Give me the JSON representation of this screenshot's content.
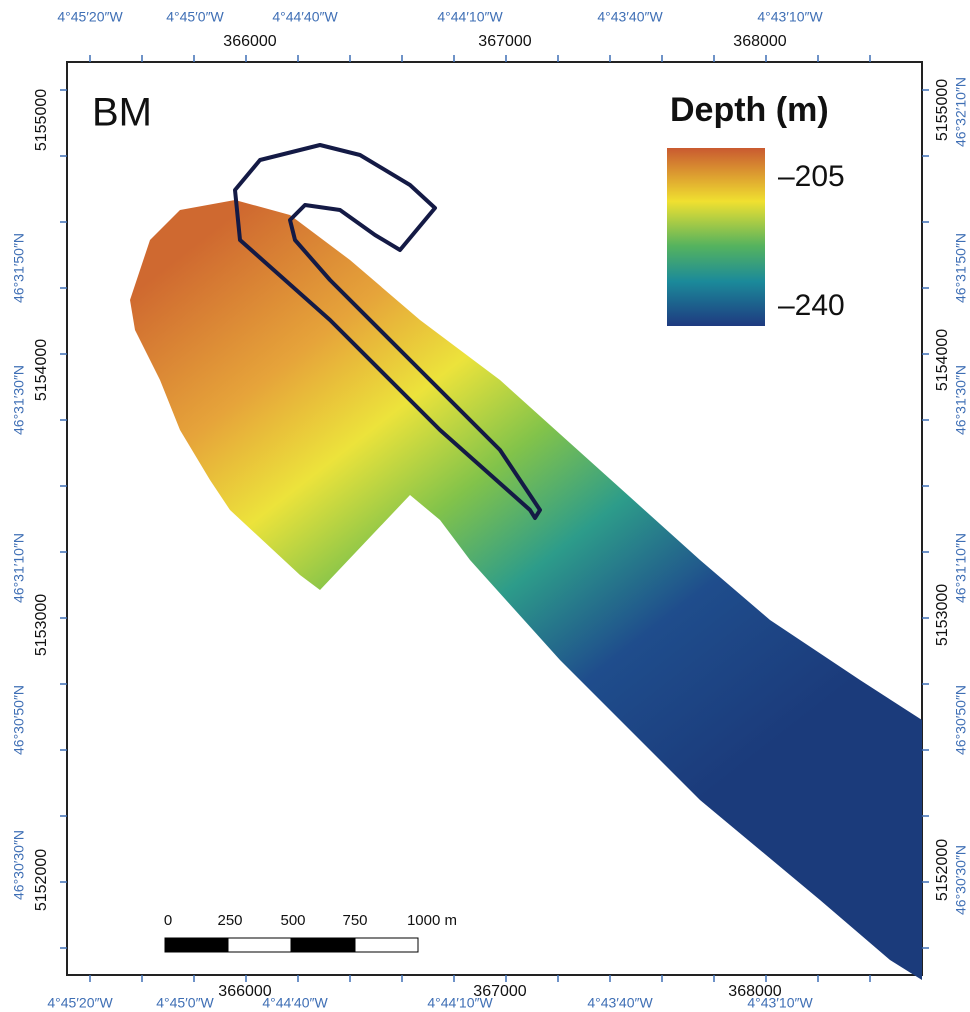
{
  "map": {
    "label": "BM"
  },
  "legend": {
    "title": "Depth (m)",
    "labels": [
      "–205",
      "–240"
    ]
  },
  "axes": {
    "top_geo": [
      "4°45′20″W",
      "4°45′0″W",
      "4°44′40″W",
      "4°44′10″W",
      "4°43′40″W",
      "4°43′10″W"
    ],
    "top_utm": [
      "366000",
      "367000",
      "368000"
    ],
    "bottom_utm": [
      "366000",
      "367000",
      "368000"
    ],
    "bottom_geo": [
      "4°45′20″W",
      "4°45′0″W",
      "4°44′40″W",
      "4°44′10″W",
      "4°43′40″W",
      "4°43′10″W"
    ],
    "left_utm": [
      "5155000",
      "5154000",
      "5153000",
      "5152000"
    ],
    "left_geo": [
      "46°31′50″N",
      "46°31′30″N",
      "46°31′10″N",
      "46°30′50″N",
      "46°30′30″N"
    ],
    "right_utm": [
      "5155000",
      "5154000",
      "5153000",
      "5152000"
    ],
    "right_geo": [
      "46°32′10″N",
      "46°31′50″N",
      "46°31′30″N",
      "46°31′10″N",
      "46°30′50″N",
      "46°30′30″N"
    ]
  },
  "scale_bar": {
    "labels": [
      "0",
      "250",
      "500",
      "750",
      "1000 m"
    ]
  }
}
